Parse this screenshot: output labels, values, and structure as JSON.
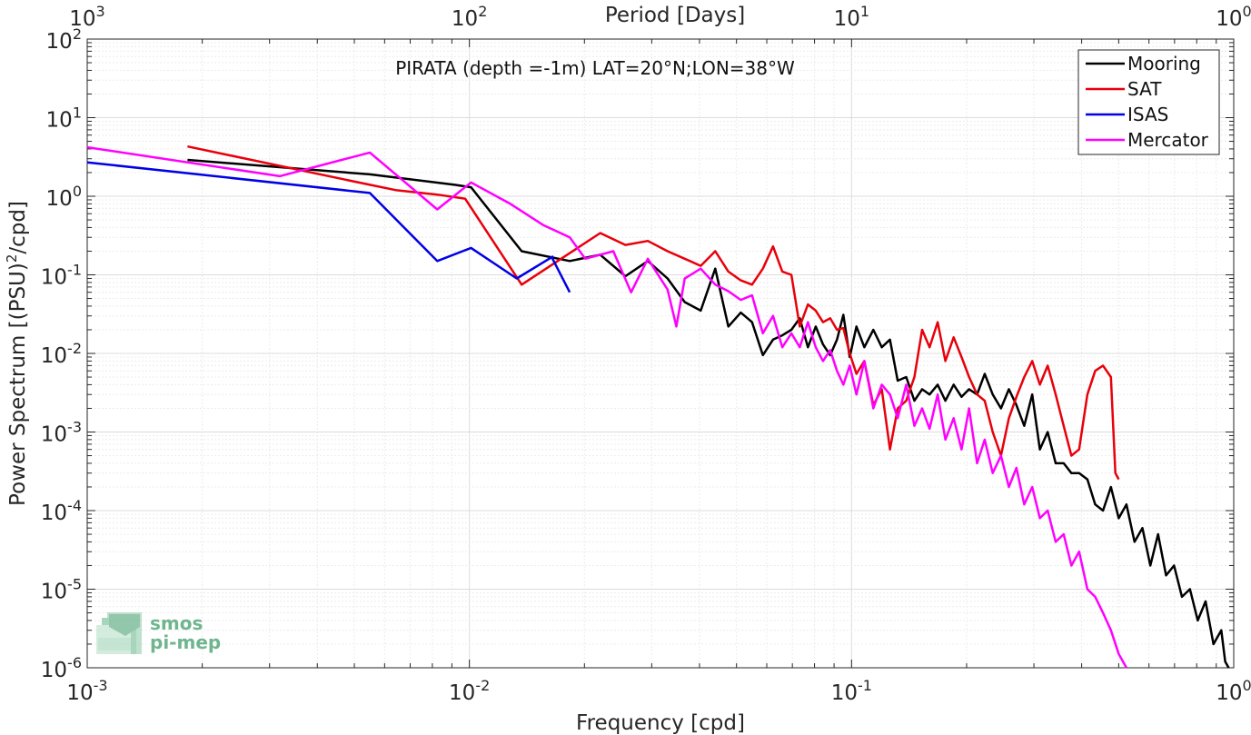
{
  "chart_data": {
    "type": "line",
    "title": "PIRATA (depth =-1m) LAT=20°N;LON=38°W",
    "xlabel": "Frequency [cpd]",
    "ylabel_main": "Power Spectrum [(PSU)",
    "ylabel_sup": "2",
    "ylabel_tail": "/cpd]",
    "top_xlabel": "Period [Days]",
    "x_scale": "log",
    "y_scale": "log",
    "xlim": [
      0.001,
      1
    ],
    "ylim": [
      1e-06,
      100
    ],
    "grid": true,
    "legend_position": "top-right",
    "x_ticks": [
      {
        "value": 0.001,
        "base": "10",
        "exp": "-3"
      },
      {
        "value": 0.01,
        "base": "10",
        "exp": "-2"
      },
      {
        "value": 0.1,
        "base": "10",
        "exp": "-1"
      },
      {
        "value": 1,
        "base": "10",
        "exp": "0"
      }
    ],
    "top_ticks": [
      {
        "value": 0.001,
        "base": "10",
        "exp": "3"
      },
      {
        "value": 0.01,
        "base": "10",
        "exp": "2"
      },
      {
        "value": 0.1,
        "base": "10",
        "exp": "1"
      },
      {
        "value": 1,
        "base": "10",
        "exp": "0"
      }
    ],
    "y_ticks": [
      {
        "value": 100,
        "base": "10",
        "exp": "2"
      },
      {
        "value": 10,
        "base": "10",
        "exp": "1"
      },
      {
        "value": 1,
        "base": "10",
        "exp": "0"
      },
      {
        "value": 0.1,
        "base": "10",
        "exp": "-1"
      },
      {
        "value": 0.01,
        "base": "10",
        "exp": "-2"
      },
      {
        "value": 0.001,
        "base": "10",
        "exp": "-3"
      },
      {
        "value": 0.0001,
        "base": "10",
        "exp": "-4"
      },
      {
        "value": 1e-05,
        "base": "10",
        "exp": "-5"
      },
      {
        "value": 1e-06,
        "base": "10",
        "exp": "-6"
      }
    ],
    "series": [
      {
        "name": "Mooring",
        "color": "#000000",
        "points": [
          [
            0.00183,
            2.9
          ],
          [
            0.00549,
            1.9
          ],
          [
            0.00915,
            1.4
          ],
          [
            0.0101,
            1.3
          ],
          [
            0.0137,
            0.2
          ],
          [
            0.0183,
            0.15
          ],
          [
            0.022,
            0.18
          ],
          [
            0.0256,
            0.096
          ],
          [
            0.0293,
            0.15
          ],
          [
            0.033,
            0.09
          ],
          [
            0.0366,
            0.045
          ],
          [
            0.0403,
            0.035
          ],
          [
            0.044,
            0.12
          ],
          [
            0.0476,
            0.022
          ],
          [
            0.0513,
            0.033
          ],
          [
            0.0549,
            0.025
          ],
          [
            0.0586,
            0.0095
          ],
          [
            0.0623,
            0.015
          ],
          [
            0.0659,
            0.017
          ],
          [
            0.0696,
            0.02
          ],
          [
            0.0732,
            0.028
          ],
          [
            0.0769,
            0.012
          ],
          [
            0.0806,
            0.022
          ],
          [
            0.0842,
            0.013
          ],
          [
            0.0879,
            0.0095
          ],
          [
            0.0916,
            0.015
          ],
          [
            0.0952,
            0.031
          ],
          [
            0.0989,
            0.009
          ],
          [
            0.103,
            0.022
          ],
          [
            0.108,
            0.012
          ],
          [
            0.114,
            0.02
          ],
          [
            0.12,
            0.012
          ],
          [
            0.126,
            0.015
          ],
          [
            0.132,
            0.0045
          ],
          [
            0.139,
            0.005
          ],
          [
            0.146,
            0.0025
          ],
          [
            0.153,
            0.0035
          ],
          [
            0.16,
            0.003
          ],
          [
            0.168,
            0.004
          ],
          [
            0.176,
            0.0025
          ],
          [
            0.185,
            0.004
          ],
          [
            0.194,
            0.0028
          ],
          [
            0.203,
            0.0035
          ],
          [
            0.213,
            0.003
          ],
          [
            0.223,
            0.0055
          ],
          [
            0.234,
            0.003
          ],
          [
            0.246,
            0.002
          ],
          [
            0.258,
            0.0035
          ],
          [
            0.27,
            0.0022
          ],
          [
            0.283,
            0.0012
          ],
          [
            0.297,
            0.003
          ],
          [
            0.311,
            0.0006
          ],
          [
            0.326,
            0.001
          ],
          [
            0.342,
            0.0004
          ],
          [
            0.359,
            0.0004
          ],
          [
            0.376,
            0.0003
          ],
          [
            0.394,
            0.0003
          ],
          [
            0.414,
            0.00025
          ],
          [
            0.434,
            0.00012
          ],
          [
            0.455,
            0.0001
          ],
          [
            0.477,
            0.0002
          ],
          [
            0.5,
            8e-05
          ],
          [
            0.524,
            0.00012
          ],
          [
            0.55,
            4e-05
          ],
          [
            0.577,
            6e-05
          ],
          [
            0.605,
            2e-05
          ],
          [
            0.634,
            5e-05
          ],
          [
            0.665,
            1.5e-05
          ],
          [
            0.698,
            2e-05
          ],
          [
            0.732,
            8e-06
          ],
          [
            0.768,
            1e-05
          ],
          [
            0.805,
            4e-06
          ],
          [
            0.844,
            7e-06
          ],
          [
            0.885,
            2e-06
          ],
          [
            0.928,
            3e-06
          ],
          [
            0.95,
            1.2e-06
          ],
          [
            0.97,
            1e-06
          ]
        ]
      },
      {
        "name": "SAT",
        "color": "#e8000b",
        "points": [
          [
            0.00183,
            4.3
          ],
          [
            0.00549,
            1.4
          ],
          [
            0.00641,
            1.2
          ],
          [
            0.00824,
            1.05
          ],
          [
            0.00975,
            0.93
          ],
          [
            0.0137,
            0.075
          ],
          [
            0.022,
            0.34
          ],
          [
            0.0256,
            0.24
          ],
          [
            0.0293,
            0.27
          ],
          [
            0.033,
            0.2
          ],
          [
            0.0366,
            0.16
          ],
          [
            0.0403,
            0.13
          ],
          [
            0.044,
            0.2
          ],
          [
            0.0476,
            0.11
          ],
          [
            0.0513,
            0.085
          ],
          [
            0.0549,
            0.075
          ],
          [
            0.0586,
            0.12
          ],
          [
            0.0623,
            0.23
          ],
          [
            0.0659,
            0.11
          ],
          [
            0.0696,
            0.1
          ],
          [
            0.0732,
            0.022
          ],
          [
            0.0769,
            0.042
          ],
          [
            0.0806,
            0.035
          ],
          [
            0.0842,
            0.025
          ],
          [
            0.0879,
            0.028
          ],
          [
            0.0916,
            0.02
          ],
          [
            0.0952,
            0.021
          ],
          [
            0.0989,
            0.01
          ],
          [
            0.103,
            0.0055
          ],
          [
            0.108,
            0.008
          ],
          [
            0.114,
            0.0022
          ],
          [
            0.12,
            0.0035
          ],
          [
            0.126,
            0.0006
          ],
          [
            0.132,
            0.002
          ],
          [
            0.139,
            0.0025
          ],
          [
            0.146,
            0.005
          ],
          [
            0.153,
            0.02
          ],
          [
            0.16,
            0.012
          ],
          [
            0.168,
            0.025
          ],
          [
            0.176,
            0.008
          ],
          [
            0.185,
            0.016
          ],
          [
            0.194,
            0.009
          ],
          [
            0.203,
            0.005
          ],
          [
            0.213,
            0.003
          ],
          [
            0.223,
            0.0025
          ],
          [
            0.234,
            0.001
          ],
          [
            0.246,
            0.0005
          ],
          [
            0.258,
            0.0015
          ],
          [
            0.27,
            0.0028
          ],
          [
            0.283,
            0.005
          ],
          [
            0.297,
            0.008
          ],
          [
            0.311,
            0.004
          ],
          [
            0.326,
            0.007
          ],
          [
            0.342,
            0.003
          ],
          [
            0.359,
            0.0012
          ],
          [
            0.376,
            0.0005
          ],
          [
            0.394,
            0.0006
          ],
          [
            0.414,
            0.003
          ],
          [
            0.434,
            0.006
          ],
          [
            0.455,
            0.007
          ],
          [
            0.477,
            0.005
          ],
          [
            0.49,
            0.0003
          ],
          [
            0.5,
            0.00025
          ]
        ]
      },
      {
        "name": "ISAS",
        "color": "#0000e6",
        "points": [
          [
            0.001,
            2.7
          ],
          [
            0.00549,
            1.1
          ],
          [
            0.00824,
            0.15
          ],
          [
            0.0101,
            0.22
          ],
          [
            0.0133,
            0.09
          ],
          [
            0.0165,
            0.17
          ],
          [
            0.0165,
            0.16
          ],
          [
            0.0183,
            0.06
          ]
        ]
      },
      {
        "name": "Mercator",
        "color": "#ff00ff",
        "points": [
          [
            0.001,
            4.2
          ],
          [
            0.00319,
            1.8
          ],
          [
            0.00549,
            3.6
          ],
          [
            0.00824,
            0.68
          ],
          [
            0.0101,
            1.5
          ],
          [
            0.0128,
            0.8
          ],
          [
            0.0156,
            0.43
          ],
          [
            0.0183,
            0.3
          ],
          [
            0.0201,
            0.16
          ],
          [
            0.0238,
            0.2
          ],
          [
            0.0265,
            0.06
          ],
          [
            0.0293,
            0.16
          ],
          [
            0.033,
            0.065
          ],
          [
            0.0348,
            0.022
          ],
          [
            0.0366,
            0.09
          ],
          [
            0.0403,
            0.12
          ],
          [
            0.044,
            0.075
          ],
          [
            0.0476,
            0.062
          ],
          [
            0.0513,
            0.048
          ],
          [
            0.0549,
            0.055
          ],
          [
            0.0586,
            0.018
          ],
          [
            0.0623,
            0.03
          ],
          [
            0.0659,
            0.012
          ],
          [
            0.0696,
            0.018
          ],
          [
            0.0732,
            0.012
          ],
          [
            0.0769,
            0.025
          ],
          [
            0.0806,
            0.012
          ],
          [
            0.0842,
            0.008
          ],
          [
            0.0879,
            0.011
          ],
          [
            0.0916,
            0.006
          ],
          [
            0.0952,
            0.004
          ],
          [
            0.0989,
            0.007
          ],
          [
            0.103,
            0.003
          ],
          [
            0.108,
            0.008
          ],
          [
            0.114,
            0.002
          ],
          [
            0.12,
            0.004
          ],
          [
            0.126,
            0.003
          ],
          [
            0.132,
            0.0015
          ],
          [
            0.139,
            0.004
          ],
          [
            0.146,
            0.0012
          ],
          [
            0.153,
            0.002
          ],
          [
            0.16,
            0.0011
          ],
          [
            0.168,
            0.003
          ],
          [
            0.176,
            0.0008
          ],
          [
            0.185,
            0.0015
          ],
          [
            0.194,
            0.0006
          ],
          [
            0.203,
            0.002
          ],
          [
            0.213,
            0.0004
          ],
          [
            0.223,
            0.0008
          ],
          [
            0.234,
            0.0003
          ],
          [
            0.246,
            0.0005
          ],
          [
            0.258,
            0.0002
          ],
          [
            0.27,
            0.00035
          ],
          [
            0.283,
            0.00012
          ],
          [
            0.297,
            0.0002
          ],
          [
            0.311,
            8e-05
          ],
          [
            0.326,
            0.0001
          ],
          [
            0.342,
            4e-05
          ],
          [
            0.359,
            5e-05
          ],
          [
            0.376,
            2e-05
          ],
          [
            0.394,
            3e-05
          ],
          [
            0.414,
            1e-05
          ],
          [
            0.434,
            8e-06
          ],
          [
            0.455,
            5e-06
          ],
          [
            0.477,
            3e-06
          ],
          [
            0.5,
            1.5e-06
          ],
          [
            0.524,
            1e-06
          ]
        ]
      }
    ]
  },
  "logo": {
    "line1": "smos",
    "line2": "pi-mep"
  }
}
